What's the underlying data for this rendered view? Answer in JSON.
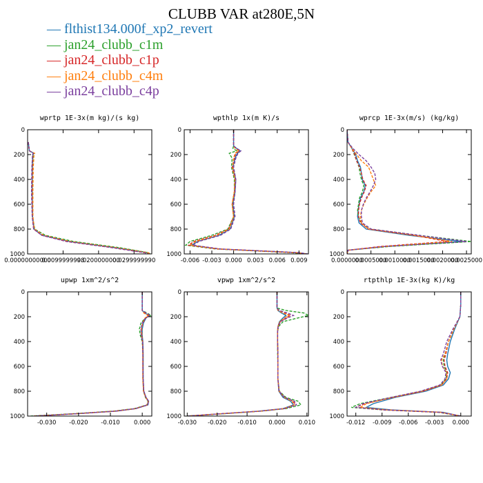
{
  "title": "CLUBB VAR at280E,5N",
  "legend": [
    {
      "label": "flthist134.000f_xp2_revert",
      "color": "#1f77b4"
    },
    {
      "label": "jan24_clubb_c1m",
      "color": "#2ca02c"
    },
    {
      "label": "jan24_clubb_c1p",
      "color": "#d62728"
    },
    {
      "label": "jan24_clubb_c4m",
      "color": "#ff7f0e"
    },
    {
      "label": "jan24_clubb_c4p",
      "color": "#7b3f9e"
    }
  ],
  "legend_marker": "—",
  "chart_data": [
    {
      "type": "line",
      "title": "wprtp  1E-3x(m kg)/(s kg)",
      "xlim": [
        0,
        0.035
      ],
      "ylim": [
        1000,
        0
      ],
      "xticks": [
        0,
        0.01,
        0.02,
        0.03
      ],
      "xtick_labels": [
        "0.00000000000",
        "0.0099999998",
        "0.0200000000",
        "0.0299999990"
      ],
      "yticks": [
        0,
        200,
        400,
        600,
        800,
        1000
      ],
      "y": [
        100,
        170,
        190,
        200,
        300,
        500,
        700,
        800,
        850,
        900,
        950,
        990,
        1000
      ],
      "series": [
        {
          "color": "#1f77b4",
          "x": [
            0.0002,
            0.0005,
            0.0018,
            0.0015,
            0.0013,
            0.0013,
            0.0014,
            0.0018,
            0.004,
            0.012,
            0.025,
            0.034,
            0.0345
          ]
        },
        {
          "color": "#2ca02c",
          "x": [
            0.0002,
            0.0005,
            0.0018,
            0.0016,
            0.0014,
            0.0013,
            0.0014,
            0.002,
            0.005,
            0.013,
            0.026,
            0.034,
            0.0345
          ]
        },
        {
          "color": "#d62728",
          "x": [
            0.0002,
            0.0005,
            0.0017,
            0.0014,
            0.0013,
            0.0012,
            0.0013,
            0.0017,
            0.004,
            0.011,
            0.024,
            0.033,
            0.034
          ]
        },
        {
          "color": "#ff7f0e",
          "x": [
            0.0002,
            0.0005,
            0.002,
            0.0018,
            0.0016,
            0.0015,
            0.0015,
            0.0019,
            0.0045,
            0.012,
            0.025,
            0.034,
            0.0345
          ]
        },
        {
          "color": "#7b3f9e",
          "x": [
            0.0002,
            0.0005,
            0.0016,
            0.0014,
            0.0012,
            0.0011,
            0.0013,
            0.0017,
            0.004,
            0.011,
            0.024,
            0.033,
            0.034
          ]
        }
      ]
    },
    {
      "type": "line",
      "title": "wpthlp  1x(m K)/s",
      "xlim": [
        -0.0068,
        0.0103
      ],
      "ylim": [
        1000,
        0
      ],
      "xticks": [
        -0.006,
        -0.003,
        0,
        0.003,
        0.006,
        0.009
      ],
      "xtick_labels": [
        "-0.006",
        "-0.003",
        "0.000",
        "0.003",
        "0.006",
        "0.009"
      ],
      "yticks": [
        0,
        200,
        400,
        600,
        800,
        1000
      ],
      "y": [
        0,
        130,
        150,
        170,
        190,
        230,
        300,
        400,
        500,
        600,
        700,
        800,
        850,
        900,
        930,
        960,
        990,
        1000
      ],
      "series": [
        {
          "color": "#1f77b4",
          "x": [
            0,
            0,
            0.0004,
            0.0009,
            0.0005,
            0.0002,
            -0.0001,
            0.0003,
            0.0002,
            -0.0001,
            0.0001,
            -0.0005,
            -0.002,
            -0.005,
            -0.0058,
            -0.002,
            0.009,
            0.01
          ]
        },
        {
          "color": "#2ca02c",
          "x": [
            0,
            0,
            -0.0001,
            0.0004,
            -0.0006,
            -0.0002,
            -0.0003,
            0.0001,
            0.0001,
            -0.0002,
            0,
            -0.0008,
            -0.003,
            -0.006,
            -0.0066,
            -0.0025,
            0.008,
            0.0095
          ]
        },
        {
          "color": "#d62728",
          "x": [
            0,
            0,
            0.0003,
            0.0008,
            0.0003,
            0.0001,
            -0.0002,
            0.0002,
            0.0001,
            -0.0002,
            0,
            -0.0007,
            -0.0025,
            -0.0055,
            -0.0062,
            -0.0022,
            0.0085,
            0.0098
          ]
        },
        {
          "color": "#ff7f0e",
          "x": [
            0,
            0,
            0.0002,
            0.0007,
            0.0002,
            0,
            -0.0001,
            0.0002,
            0.0001,
            -0.0002,
            0,
            -0.0006,
            -0.0023,
            -0.0052,
            -0.006,
            -0.002,
            0.0088,
            0.01
          ]
        },
        {
          "color": "#7b3f9e",
          "x": [
            0,
            0,
            0.0004,
            0.001,
            0.0006,
            0.0003,
            0,
            0.0003,
            0.0002,
            0,
            0.0002,
            -0.0004,
            -0.0018,
            -0.0048,
            -0.0056,
            -0.0018,
            0.009,
            0.0102
          ]
        }
      ]
    },
    {
      "type": "line",
      "title": "wprcp  1E-3x(m/s) (kg/kg)",
      "xlim": [
        0,
        0.0026
      ],
      "ylim": [
        1000,
        0
      ],
      "xticks": [
        0,
        0.0005,
        0.001,
        0.0015,
        0.002,
        0.0025
      ],
      "xtick_labels": [
        "0.0000000",
        "0.0005000",
        "0.0010000",
        "0.0015000",
        "0.0020000",
        "0.0025000"
      ],
      "yticks": [
        0,
        200,
        400,
        600,
        800,
        1000
      ],
      "y": [
        0,
        100,
        150,
        200,
        250,
        300,
        350,
        400,
        450,
        500,
        550,
        600,
        650,
        700,
        750,
        800,
        850,
        900,
        940,
        970,
        1000
      ],
      "series": [
        {
          "color": "#1f77b4",
          "x": [
            0,
            2e-05,
            0.0001,
            0.00018,
            0.00022,
            0.00028,
            0.0003,
            0.00032,
            0.00038,
            0.00035,
            0.00028,
            0.00025,
            0.00023,
            0.00022,
            0.00025,
            0.0004,
            0.0013,
            0.0024,
            0.0008,
            2e-05,
            0
          ]
        },
        {
          "color": "#2ca02c",
          "x": [
            0,
            2e-05,
            0.0001,
            0.00015,
            0.0002,
            0.00025,
            0.00027,
            0.0003,
            0.00035,
            0.00032,
            0.00026,
            0.00024,
            0.00022,
            0.00024,
            0.0003,
            0.0005,
            0.0015,
            0.0026,
            0.0009,
            2e-05,
            0
          ]
        },
        {
          "color": "#d62728",
          "x": [
            0,
            2e-05,
            0.0001,
            0.00016,
            0.0002,
            0.00026,
            0.0003,
            0.00033,
            0.0004,
            0.00036,
            0.0003,
            0.00026,
            0.00024,
            0.00024,
            0.00028,
            0.00045,
            0.0014,
            0.0021,
            0.0007,
            2e-05,
            0
          ]
        },
        {
          "color": "#ff7f0e",
          "x": [
            0,
            2e-05,
            0.0001,
            0.0002,
            0.0003,
            0.00045,
            0.0005,
            0.00055,
            0.0006,
            0.0005,
            0.00042,
            0.00035,
            0.0003,
            0.00028,
            0.0003,
            0.00045,
            0.0014,
            0.0022,
            0.0008,
            2e-05,
            0
          ]
        },
        {
          "color": "#7b3f9e",
          "x": [
            0,
            2e-05,
            0.00012,
            0.00025,
            0.0004,
            0.0005,
            0.00058,
            0.0006,
            0.00055,
            0.00048,
            0.0004,
            0.00034,
            0.0003,
            0.0003,
            0.00032,
            0.0005,
            0.0015,
            0.0025,
            0.0008,
            2e-05,
            0
          ]
        }
      ]
    },
    {
      "type": "line",
      "title": "upwp  1xm^2/s^2",
      "xlim": [
        -0.036,
        0.003
      ],
      "ylim": [
        1000,
        0
      ],
      "xticks": [
        -0.03,
        -0.02,
        -0.01,
        0
      ],
      "xtick_labels": [
        "-0.030",
        "-0.020",
        "-0.010",
        "0.000"
      ],
      "yticks": [
        0,
        200,
        400,
        600,
        800,
        1000
      ],
      "y": [
        0,
        150,
        170,
        190,
        210,
        250,
        300,
        350,
        400,
        500,
        600,
        700,
        800,
        850,
        880,
        910,
        940,
        960,
        980,
        1000
      ],
      "series": [
        {
          "color": "#1f77b4",
          "x": [
            0,
            0,
            0.0008,
            0.0022,
            0.0012,
            0.0004,
            0,
            0,
            0.0002,
            0.0003,
            0.0003,
            0.0003,
            0.0005,
            0.0012,
            0.002,
            0.0018,
            -0.002,
            -0.008,
            -0.02,
            -0.034
          ]
        },
        {
          "color": "#2ca02c",
          "x": [
            0,
            0,
            0.0015,
            0.0028,
            0.001,
            -0.0004,
            -0.0009,
            -0.0006,
            0,
            0.0002,
            0.0002,
            0.0002,
            0.0004,
            0.001,
            0.0018,
            0.0015,
            -0.0025,
            -0.009,
            -0.021,
            -0.035
          ]
        },
        {
          "color": "#d62728",
          "x": [
            0,
            0,
            0.0007,
            0.002,
            0.001,
            0.0002,
            -0.0003,
            -0.0002,
            0.0001,
            0.0002,
            0.0002,
            0.0002,
            0.0004,
            0.0011,
            0.0019,
            0.0016,
            -0.0022,
            -0.0085,
            -0.02,
            -0.034
          ]
        },
        {
          "color": "#ff7f0e",
          "x": [
            0,
            0,
            0.0005,
            0.0018,
            0.0009,
            0.0001,
            -0.0002,
            -0.0001,
            0.0001,
            0.0002,
            0.0002,
            0.0002,
            0.0004,
            0.0011,
            0.0019,
            0.0017,
            -0.002,
            -0.008,
            -0.02,
            -0.034
          ]
        },
        {
          "color": "#7b3f9e",
          "x": [
            0,
            0,
            0.0012,
            0.0025,
            0.0011,
            0,
            -0.0004,
            -0.0003,
            0.0001,
            0.0002,
            0.0002,
            0.0003,
            0.0005,
            0.0012,
            0.002,
            0.0017,
            -0.0021,
            -0.0082,
            -0.02,
            -0.034
          ]
        }
      ]
    },
    {
      "type": "line",
      "title": "vpwp  1xm^2/s^2",
      "xlim": [
        -0.031,
        0.0105
      ],
      "ylim": [
        1000,
        0
      ],
      "xticks": [
        -0.03,
        -0.02,
        -0.01,
        0,
        0.01
      ],
      "xtick_labels": [
        "-0.030",
        "-0.020",
        "-0.010",
        "0.000",
        "0.010"
      ],
      "yticks": [
        0,
        200,
        400,
        600,
        800,
        1000
      ],
      "y": [
        0,
        130,
        150,
        170,
        190,
        210,
        240,
        280,
        320,
        400,
        500,
        600,
        700,
        800,
        850,
        880,
        910,
        940,
        960,
        980,
        1000
      ],
      "series": [
        {
          "color": "#1f77b4",
          "x": [
            0,
            0,
            0.0003,
            0.0015,
            0.003,
            0.002,
            0.0008,
            0.0003,
            0.0002,
            0.0002,
            0.0003,
            0.0003,
            0.0003,
            0.0006,
            0.002,
            0.0045,
            0.0055,
            0.002,
            -0.006,
            -0.018,
            -0.03
          ]
        },
        {
          "color": "#2ca02c",
          "x": [
            0,
            0,
            0.003,
            0.009,
            0.0105,
            0.007,
            0.002,
            0.0005,
            0.0002,
            0.0002,
            0.0002,
            0.0003,
            0.0003,
            0.0008,
            0.003,
            0.007,
            0.008,
            0.003,
            -0.005,
            -0.017,
            -0.03
          ]
        },
        {
          "color": "#d62728",
          "x": [
            0,
            0,
            0.0005,
            0.0025,
            0.0045,
            0.003,
            0.001,
            0.0003,
            0.0002,
            0.0002,
            0.0003,
            0.0003,
            0.0003,
            0.0007,
            0.0025,
            0.0055,
            0.006,
            0.0025,
            -0.0055,
            -0.018,
            -0.03
          ]
        },
        {
          "color": "#ff7f0e",
          "x": [
            0,
            0,
            0.0004,
            0.002,
            0.004,
            0.0025,
            0.001,
            0.0003,
            0.0002,
            0.0002,
            0.0003,
            0.0003,
            0.0003,
            0.0007,
            0.0024,
            0.005,
            0.0058,
            0.0022,
            -0.0055,
            -0.018,
            -0.03
          ]
        },
        {
          "color": "#7b3f9e",
          "x": [
            0,
            0,
            0.0008,
            0.0035,
            0.0055,
            0.0035,
            0.0012,
            0.0004,
            0.0002,
            0.0002,
            0.0003,
            0.0003,
            0.0003,
            0.0007,
            0.0026,
            0.0058,
            0.0065,
            0.0025,
            -0.0055,
            -0.018,
            -0.03
          ]
        }
      ]
    },
    {
      "type": "line",
      "title": "rtpthlp  1E-3x(kg K)/kg",
      "xlim": [
        -0.013,
        0.0012
      ],
      "ylim": [
        1000,
        0
      ],
      "xticks": [
        -0.012,
        -0.009,
        -0.006,
        -0.003,
        0
      ],
      "xtick_labels": [
        "-0.012",
        "-0.009",
        "-0.006",
        "-0.003",
        "0.000"
      ],
      "yticks": [
        0,
        200,
        400,
        600,
        800,
        1000
      ],
      "y": [
        0,
        100,
        200,
        300,
        400,
        500,
        550,
        600,
        650,
        700,
        750,
        800,
        850,
        900,
        930,
        950,
        970,
        1000
      ],
      "series": [
        {
          "color": "#1f77b4",
          "x": [
            0,
            0,
            -0.0001,
            -0.0007,
            -0.0012,
            -0.0015,
            -0.0016,
            -0.0015,
            -0.0012,
            -0.0014,
            -0.002,
            -0.004,
            -0.0075,
            -0.01,
            -0.0108,
            -0.008,
            -0.002,
            0
          ]
        },
        {
          "color": "#2ca02c",
          "x": [
            0,
            0,
            -0.0001,
            -0.0008,
            -0.0014,
            -0.0018,
            -0.002,
            -0.0019,
            -0.0016,
            -0.0017,
            -0.0023,
            -0.0045,
            -0.008,
            -0.0115,
            -0.0125,
            -0.009,
            -0.0025,
            0
          ]
        },
        {
          "color": "#d62728",
          "x": [
            0,
            0,
            -0.0001,
            -0.0008,
            -0.0014,
            -0.0017,
            -0.0019,
            -0.0018,
            -0.0015,
            -0.0016,
            -0.0022,
            -0.0043,
            -0.0078,
            -0.011,
            -0.012,
            -0.0088,
            -0.0023,
            0
          ]
        },
        {
          "color": "#ff7f0e",
          "x": [
            0,
            0,
            -0.0001,
            -0.0008,
            -0.0014,
            -0.0018,
            -0.0022,
            -0.0021,
            -0.0016,
            -0.0016,
            -0.0022,
            -0.0044,
            -0.0078,
            -0.0108,
            -0.0115,
            -0.0085,
            -0.0022,
            0
          ]
        },
        {
          "color": "#7b3f9e",
          "x": [
            0,
            0,
            -0.0001,
            -0.0009,
            -0.0016,
            -0.002,
            -0.0023,
            -0.0021,
            -0.0017,
            -0.0018,
            -0.0024,
            -0.0046,
            -0.008,
            -0.0112,
            -0.012,
            -0.0088,
            -0.0023,
            0
          ]
        }
      ]
    }
  ]
}
